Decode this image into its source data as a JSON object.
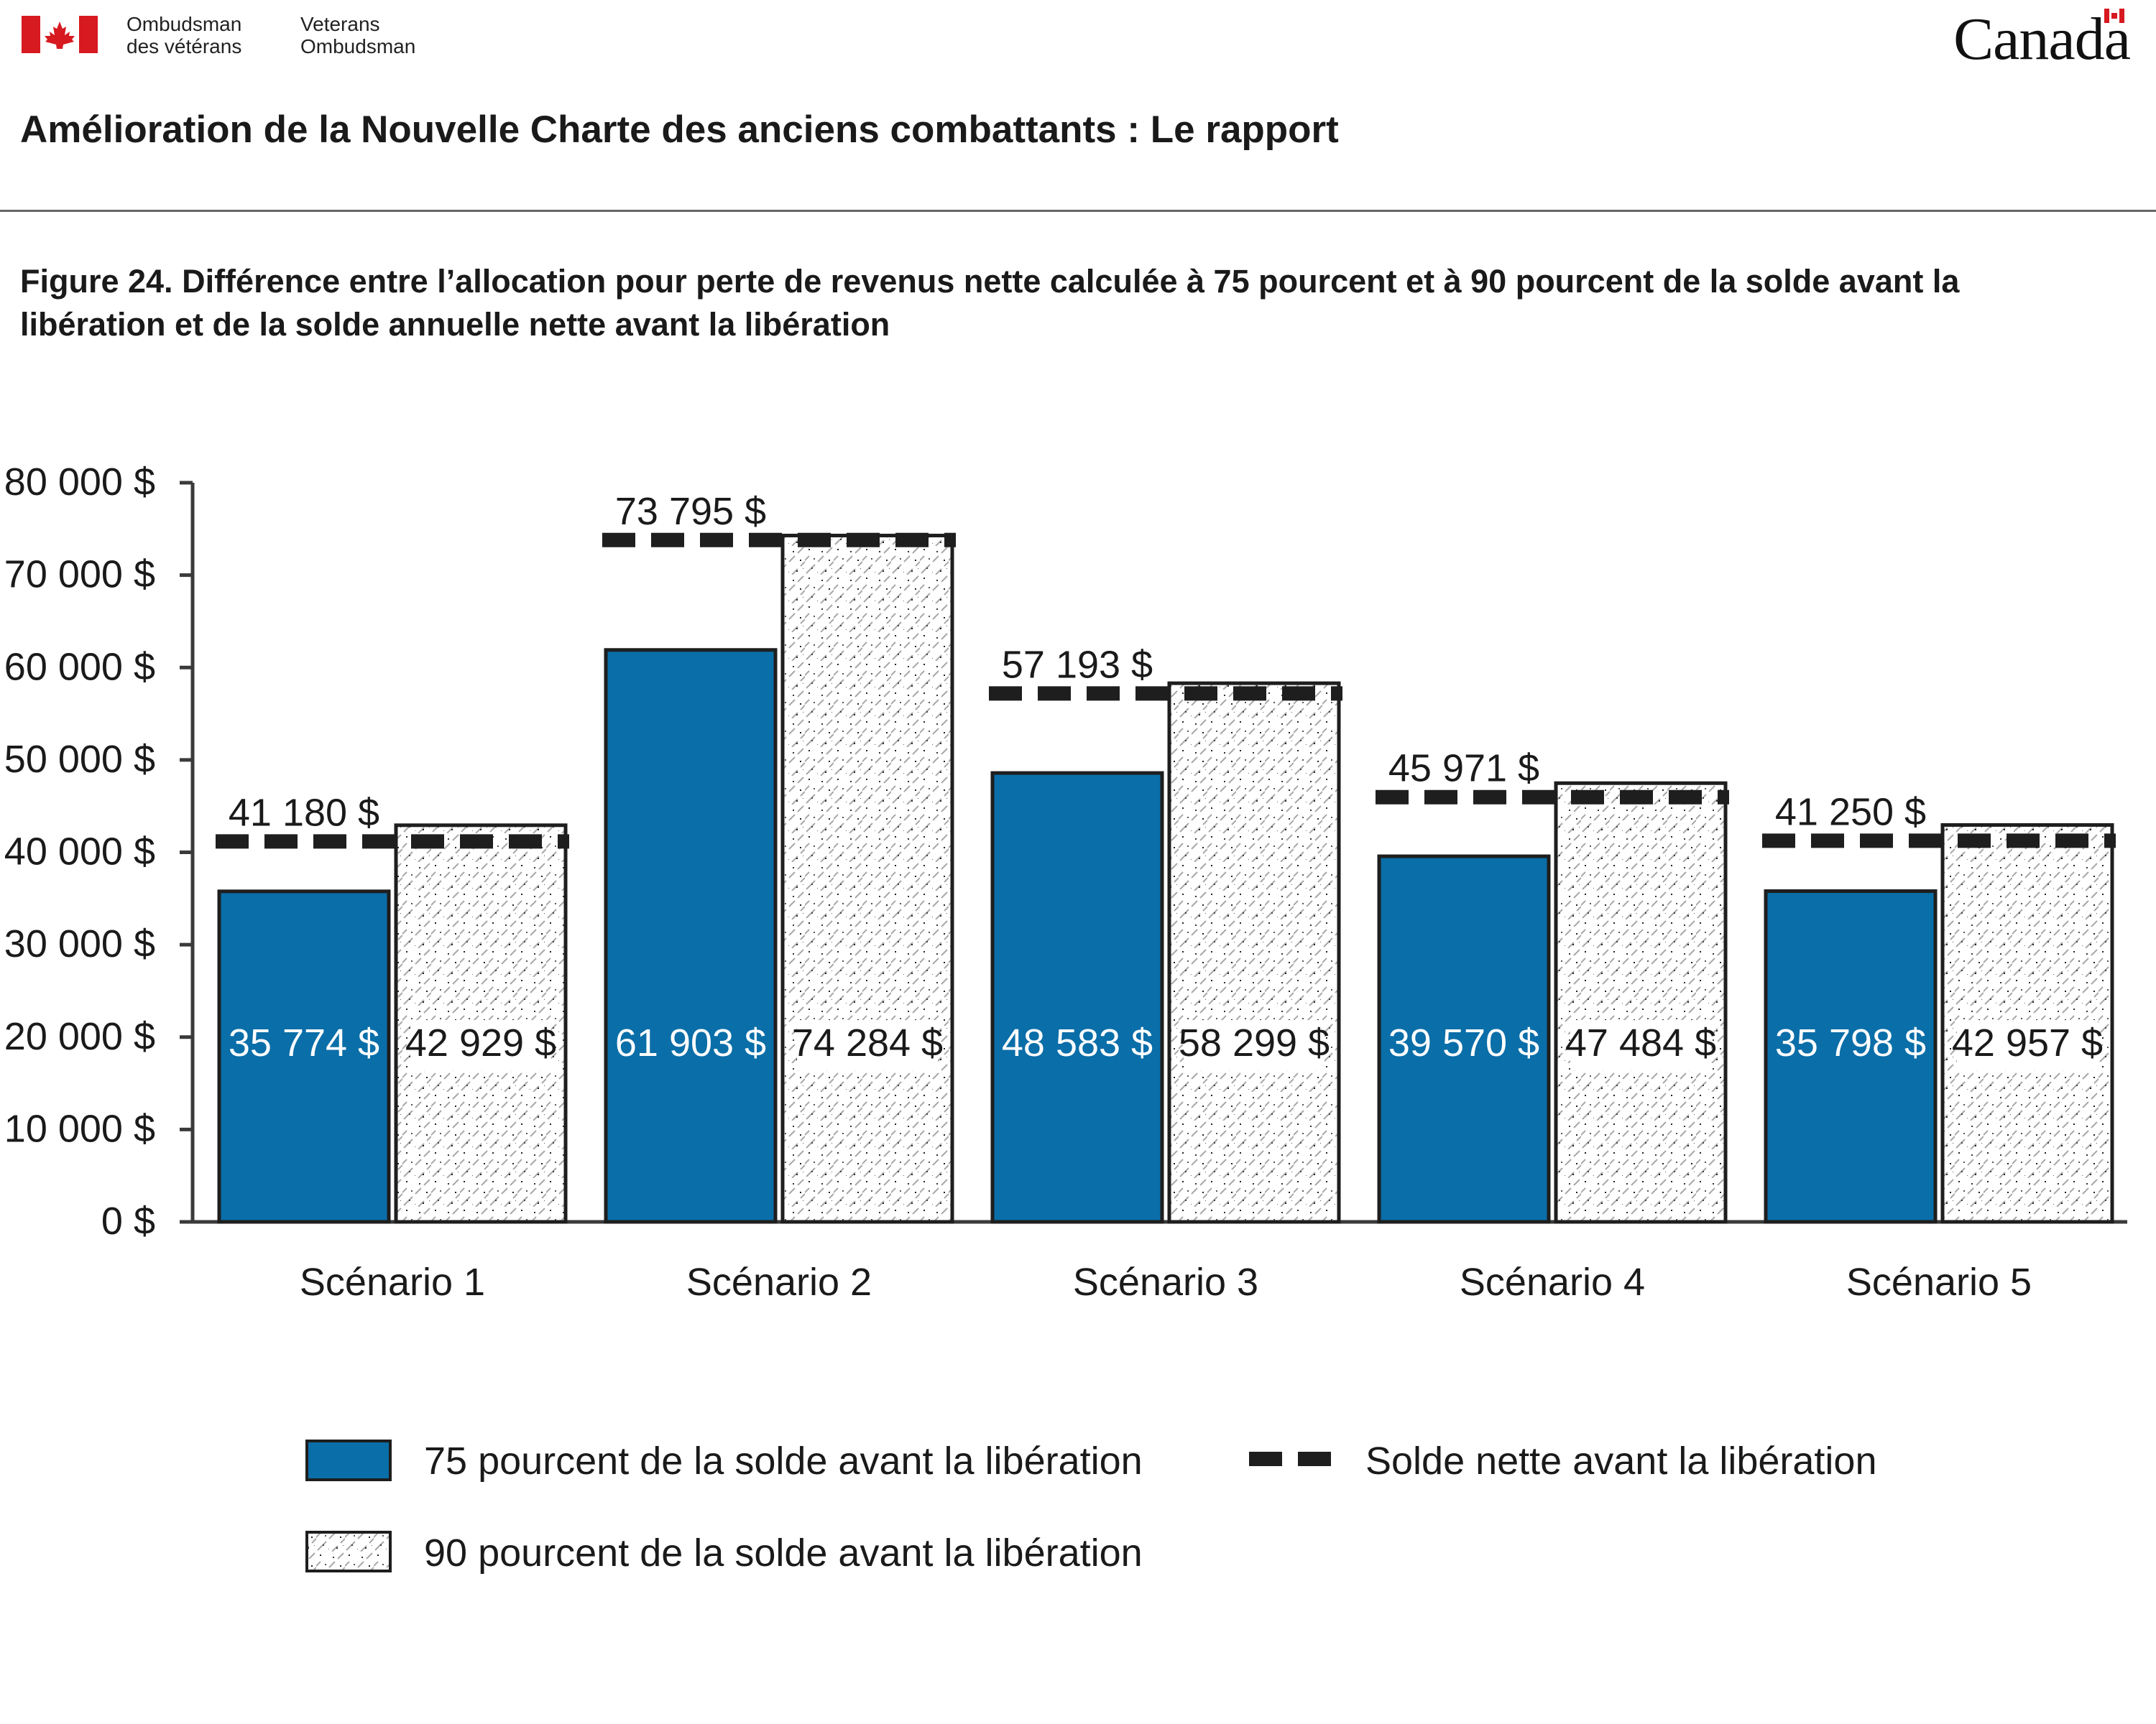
{
  "header": {
    "org_fr": [
      "Ombudsman",
      "des vétérans"
    ],
    "org_en": [
      "Veterans",
      "Ombudsman"
    ],
    "wordmark": "Canada"
  },
  "report_title": "Amélioration de la Nouvelle Charte des anciens combattants : Le rapport",
  "colors": {
    "blue": "#0a6ea8",
    "dash": "#1e1e1e",
    "outline": "#1e1e1e",
    "flag_red": "#d71920"
  },
  "chart_data": {
    "type": "bar",
    "title": "Figure 24. Différence entre l’allocation pour perte de revenus nette calculée à 75 pourcent et à 90 pourcent de la solde avant la libération et de la solde annuelle nette avant la libération",
    "categories": [
      "Scénario 1",
      "Scénario 2",
      "Scénario 3",
      "Scénario 4",
      "Scénario 5"
    ],
    "series": [
      {
        "name": "75 pourcent de la solde avant la libération",
        "values": [
          35774,
          61903,
          48583,
          39570,
          35798
        ],
        "labels": [
          "35 774 $",
          "61 903 $",
          "48 583 $",
          "39 570 $",
          "35 798 $"
        ]
      },
      {
        "name": "90 pourcent de la solde avant la libération",
        "values": [
          42929,
          74284,
          58299,
          47484,
          42957
        ],
        "labels": [
          "42 929 $",
          "74 284 $",
          "58 299 $",
          "47 484 $",
          "42 957 $"
        ]
      }
    ],
    "reference": {
      "name": "Solde nette avant la libération",
      "values": [
        41180,
        73795,
        57193,
        45971,
        41250
      ],
      "labels": [
        "41 180 $",
        "73 795 $",
        "57 193 $",
        "45 971 $",
        "41 250 $"
      ]
    },
    "ylim": [
      0,
      80000
    ],
    "yticks": [
      0,
      10000,
      20000,
      30000,
      40000,
      50000,
      60000,
      70000,
      80000
    ],
    "ytick_labels": [
      "0 $",
      "10 000 $",
      "20 000 $",
      "30 000 $",
      "40 000 $",
      "50 000 $",
      "60 000 $",
      "70 000 $",
      "80 000 $"
    ],
    "grid": false,
    "legend": "bottom"
  }
}
